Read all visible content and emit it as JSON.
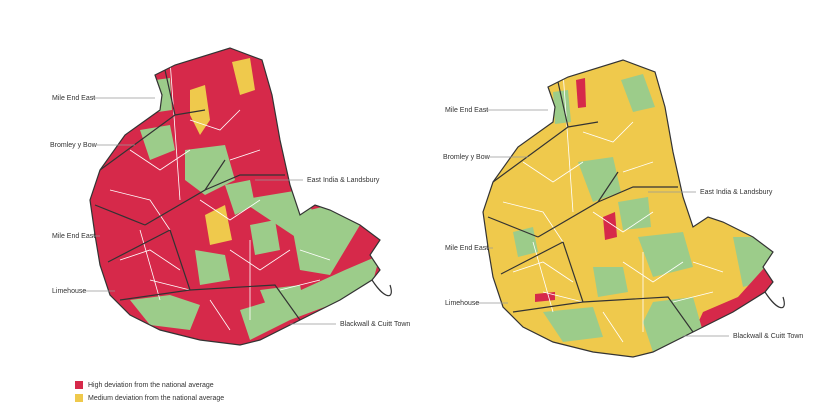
{
  "maps": [
    {
      "labels": [
        "Mile End East",
        "Bromley y Bow",
        "East India & Landsbury",
        "Mile End East",
        "Limehouse",
        "Blackwall & Cuitt Town"
      ]
    },
    {
      "labels": [
        "Mile End East",
        "Bromley y Bow",
        "East India & Landsbury",
        "Mile End East",
        "Limehouse",
        "Blackwall & Cuitt Town"
      ]
    }
  ],
  "legend": [
    {
      "label": "High deviation from the national average",
      "color": "#d6294a"
    },
    {
      "label": "Medium deviation from the national average",
      "color": "#efc94c"
    }
  ]
}
